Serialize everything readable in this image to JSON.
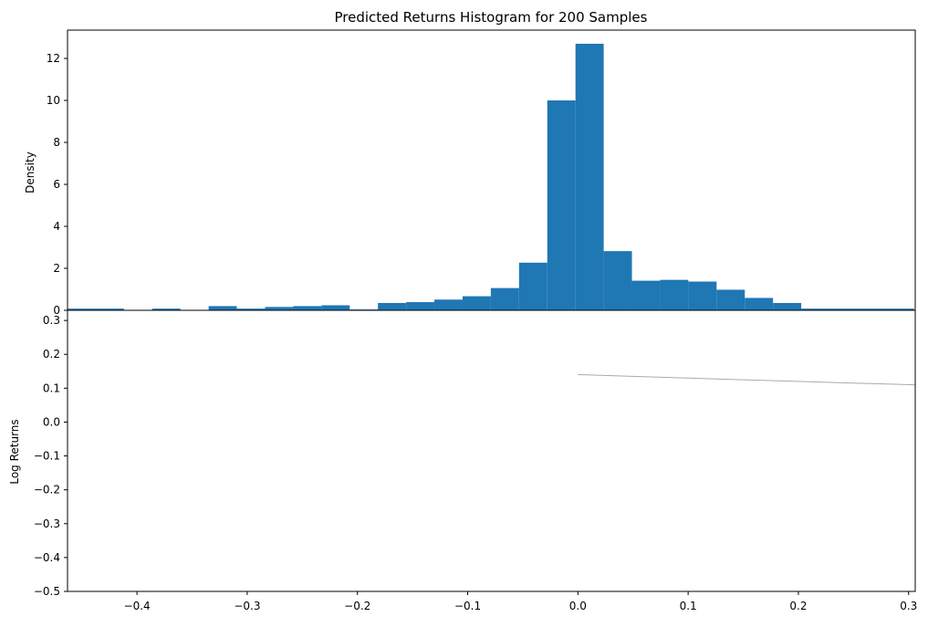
{
  "chart_data": [
    {
      "type": "bar",
      "title": "Predicted Returns Histogram for 200 Samples",
      "xlabel": "",
      "ylabel": "Density",
      "xlim": [
        -0.463,
        0.306
      ],
      "ylim": [
        0,
        13.35
      ],
      "yticks": [
        0,
        2,
        4,
        6,
        8,
        10,
        12
      ],
      "bar_color": "#1f77b4",
      "bin_width": 0.0256,
      "bins": [
        {
          "x0": -0.463,
          "density": 0.08
        },
        {
          "x0": -0.4374,
          "density": 0.08
        },
        {
          "x0": -0.4118,
          "density": 0.0
        },
        {
          "x0": -0.3862,
          "density": 0.08
        },
        {
          "x0": -0.3606,
          "density": 0.0
        },
        {
          "x0": -0.335,
          "density": 0.2
        },
        {
          "x0": -0.3094,
          "density": 0.08
        },
        {
          "x0": -0.2838,
          "density": 0.16
        },
        {
          "x0": -0.2582,
          "density": 0.2
        },
        {
          "x0": -0.2326,
          "density": 0.24
        },
        {
          "x0": -0.207,
          "density": 0.04
        },
        {
          "x0": -0.1814,
          "density": 0.35
        },
        {
          "x0": -0.1558,
          "density": 0.39
        },
        {
          "x0": -0.1302,
          "density": 0.51
        },
        {
          "x0": -0.1046,
          "density": 0.67
        },
        {
          "x0": -0.079,
          "density": 1.06
        },
        {
          "x0": -0.0534,
          "density": 2.27
        },
        {
          "x0": -0.0278,
          "density": 10.0
        },
        {
          "x0": -0.0022,
          "density": 12.7
        },
        {
          "x0": 0.0234,
          "density": 2.82
        },
        {
          "x0": 0.049,
          "density": 1.41
        },
        {
          "x0": 0.0746,
          "density": 1.45
        },
        {
          "x0": 0.1002,
          "density": 1.37
        },
        {
          "x0": 0.1258,
          "density": 0.98
        },
        {
          "x0": 0.1514,
          "density": 0.59
        },
        {
          "x0": 0.177,
          "density": 0.35
        },
        {
          "x0": 0.2026,
          "density": 0.08
        },
        {
          "x0": 0.2282,
          "density": 0.08
        },
        {
          "x0": 0.2538,
          "density": 0.08
        },
        {
          "x0": 0.2794,
          "density": 0.08
        }
      ]
    },
    {
      "type": "line",
      "title": "",
      "xlabel": "",
      "ylabel": "Log Returns",
      "xlim": [
        -0.463,
        0.306
      ],
      "ylim": [
        -0.5,
        0.33
      ],
      "xticks": [
        -0.4,
        -0.3,
        -0.2,
        -0.1,
        0.0,
        0.1,
        0.2,
        0.3
      ],
      "xtick_labels": [
        "−0.4",
        "−0.3",
        "−0.2",
        "−0.1",
        "0.0",
        "0.1",
        "0.2",
        "0.3"
      ],
      "yticks": [
        -0.5,
        -0.4,
        -0.3,
        -0.2,
        -0.1,
        0.0,
        0.1,
        0.2,
        0.3
      ],
      "ytick_labels": [
        "−0.5",
        "−0.4",
        "−0.3",
        "−0.2",
        "−0.1",
        "0.0",
        "0.1",
        "0.2",
        "0.3"
      ],
      "series": [
        {
          "color": "#aaaaaa",
          "x": [
            0.0,
            0.05,
            0.1,
            0.15,
            0.2,
            0.25,
            0.306
          ],
          "y": [
            0.14,
            0.135,
            0.13,
            0.125,
            0.12,
            0.115,
            0.11
          ]
        }
      ]
    }
  ]
}
